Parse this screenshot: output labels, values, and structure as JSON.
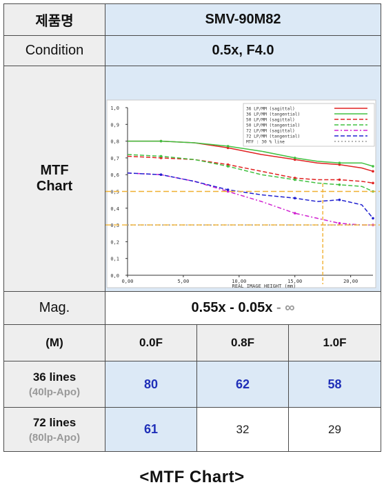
{
  "table": {
    "product_label": "제품명",
    "product_name": "SMV-90M82",
    "condition_label": "Condition",
    "condition_value": "0.5x, F4.0",
    "chart_label_line1": "MTF",
    "chart_label_line2": "Chart",
    "mag_label": "Mag.",
    "mag_value_main": "0.55x - 0.05x",
    "mag_value_dash": " - ",
    "mag_value_inf": "∞",
    "header_m": "(M)",
    "header_cols": [
      "0.0F",
      "0.8F",
      "1.0F"
    ],
    "rows": [
      {
        "label": "36 lines",
        "sublabel": "(40lp-Apo)",
        "values": [
          "80",
          "62",
          "58"
        ],
        "highlight": [
          true,
          true,
          true
        ]
      },
      {
        "label": "72 lines",
        "sublabel": "(80lp-Apo)",
        "values": [
          "61",
          "32",
          "29"
        ],
        "highlight": [
          true,
          false,
          false
        ]
      }
    ]
  },
  "caption": "<MTF Chart>",
  "colors": {
    "header_gray": "#eeeeee",
    "cell_blue": "#dce9f6",
    "value_blue": "#1f2fb8",
    "guide_orange": "#f0b030"
  },
  "chart_data": {
    "type": "line",
    "xlabel": "REAL IMAGE HEIGHT (mm)",
    "ylabel": "",
    "xlim": [
      0,
      22
    ],
    "ylim": [
      0,
      1.0
    ],
    "x_ticks": [
      "0,00",
      "5,00",
      "10,00",
      "15,00",
      "20,00"
    ],
    "x_tick_values": [
      0,
      5,
      10,
      15,
      20
    ],
    "y_ticks": [
      "0,0",
      "0,1",
      "0,2",
      "0,3",
      "0,4",
      "0,5",
      "0,6",
      "0,7",
      "0,8",
      "0,9",
      "1,0"
    ],
    "y_tick_values": [
      0,
      0.1,
      0.2,
      0.3,
      0.4,
      0.5,
      0.6,
      0.7,
      0.8,
      0.9,
      1.0
    ],
    "legend_position": "top-right",
    "legend": [
      "36 LP/MM (sagittal)",
      "36 LP/MM (tangential)",
      "50 LP/MM (sagittal)",
      "50 LP/MM (tangential)",
      "72 LP/MM (sagittal)",
      "72 LP/MM (tangential)",
      "MTF : 30 % line"
    ],
    "series": [
      {
        "name": "36 LP/MM (sagittal)",
        "color": "#e02020",
        "dash": "",
        "x": [
          0,
          3,
          6,
          9,
          12,
          15,
          17,
          19,
          21,
          22
        ],
        "values": [
          0.8,
          0.8,
          0.79,
          0.76,
          0.72,
          0.69,
          0.67,
          0.66,
          0.64,
          0.62
        ]
      },
      {
        "name": "36 LP/MM (tangential)",
        "color": "#40c040",
        "dash": "",
        "x": [
          0,
          3,
          6,
          9,
          12,
          15,
          17,
          19,
          21,
          22
        ],
        "values": [
          0.8,
          0.8,
          0.79,
          0.77,
          0.74,
          0.7,
          0.68,
          0.67,
          0.67,
          0.65
        ]
      },
      {
        "name": "50 LP/MM (sagittal)",
        "color": "#e02020",
        "dash": "6 3",
        "x": [
          0,
          3,
          6,
          9,
          12,
          15,
          17,
          19,
          21,
          22
        ],
        "values": [
          0.71,
          0.7,
          0.69,
          0.66,
          0.62,
          0.58,
          0.57,
          0.57,
          0.56,
          0.55
        ]
      },
      {
        "name": "50 LP/MM (tangential)",
        "color": "#40c040",
        "dash": "6 3",
        "x": [
          0,
          3,
          6,
          9,
          12,
          15,
          17,
          19,
          21,
          22
        ],
        "values": [
          0.72,
          0.71,
          0.69,
          0.65,
          0.6,
          0.57,
          0.55,
          0.54,
          0.53,
          0.5
        ]
      },
      {
        "name": "72 LP/MM (sagittal)",
        "color": "#d020d0",
        "dash": "6 3 2 3",
        "x": [
          0,
          3,
          6,
          9,
          12,
          15,
          17,
          19,
          21,
          22
        ],
        "values": [
          0.61,
          0.6,
          0.56,
          0.5,
          0.44,
          0.37,
          0.34,
          0.31,
          0.3,
          0.3
        ]
      },
      {
        "name": "72 LP/MM (tangential)",
        "color": "#2020d0",
        "dash": "6 3",
        "x": [
          0,
          3,
          6,
          9,
          12,
          15,
          17,
          19,
          21,
          22
        ],
        "values": [
          0.61,
          0.6,
          0.56,
          0.51,
          0.48,
          0.46,
          0.44,
          0.45,
          0.42,
          0.34
        ]
      },
      {
        "name": "MTF : 30 % line",
        "color": "#9a9a9a",
        "dash": "2 3",
        "x": [
          0,
          22
        ],
        "values": [
          0.3,
          0.3
        ]
      }
    ],
    "guides": {
      "horizontal_values": [
        0.5,
        0.3
      ],
      "vertical_x": 17.5,
      "color": "#f0b030"
    }
  }
}
